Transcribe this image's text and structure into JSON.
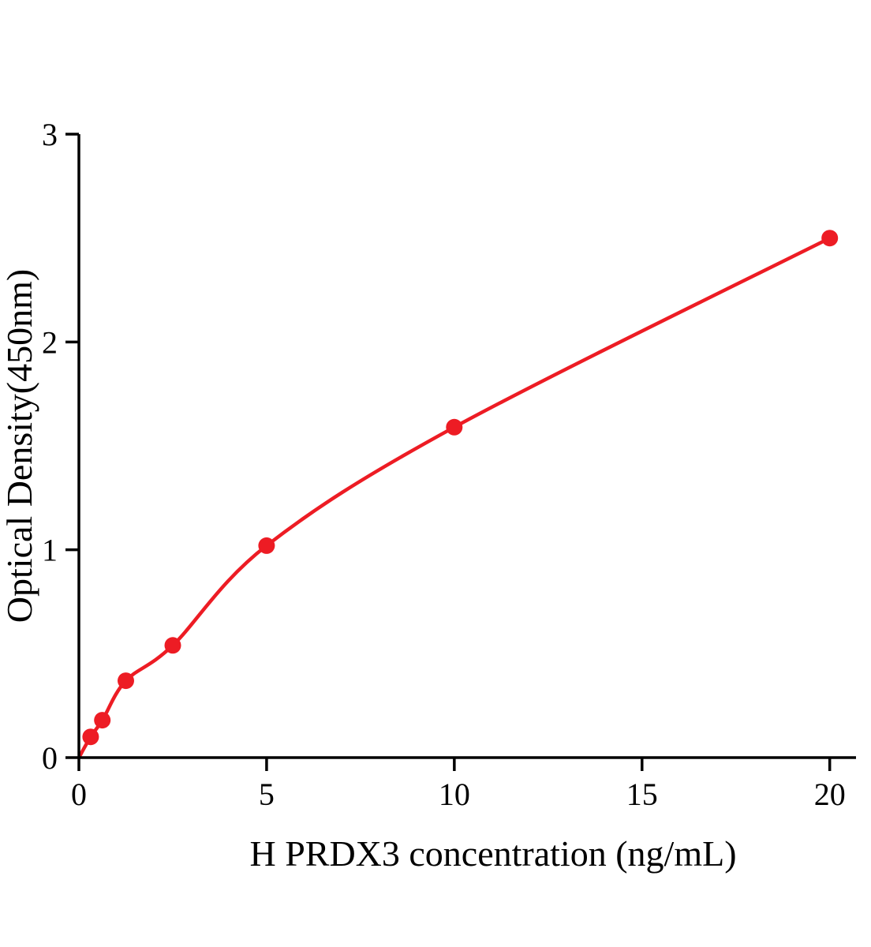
{
  "chart_data": {
    "type": "scatter",
    "title": "",
    "xlabel": "H PRDX3 concentration (ng/mL)",
    "ylabel": "Optical Density(450nm)",
    "x": [
      0.313,
      0.625,
      1.25,
      2.5,
      5,
      10,
      20
    ],
    "y": [
      0.1,
      0.18,
      0.37,
      0.54,
      1.02,
      1.59,
      2.5
    ],
    "curve_start_x": 0,
    "curve_start_y": 0,
    "xlim": [
      0,
      20.7
    ],
    "ylim": [
      0,
      3
    ],
    "x_ticks": [
      0,
      5,
      10,
      15,
      20
    ],
    "y_ticks": [
      0,
      1,
      2,
      3
    ],
    "grid": false,
    "legend_position": "none",
    "line_color": "#ed1c24",
    "marker_color": "#ed1c24",
    "axis_color": "#000000"
  }
}
